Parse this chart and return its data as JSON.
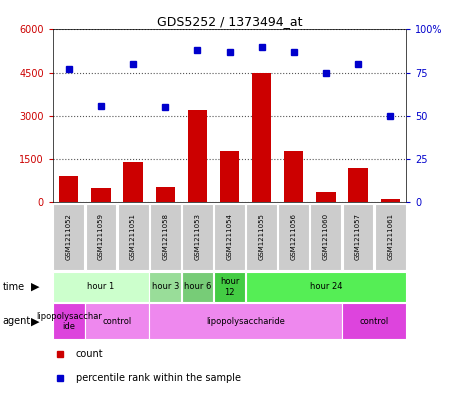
{
  "title": "GDS5252 / 1373494_at",
  "samples": [
    "GSM1211052",
    "GSM1211059",
    "GSM1211051",
    "GSM1211058",
    "GSM1211053",
    "GSM1211054",
    "GSM1211055",
    "GSM1211056",
    "GSM1211060",
    "GSM1211057",
    "GSM1211061"
  ],
  "counts": [
    900,
    500,
    1400,
    550,
    3200,
    1800,
    4500,
    1800,
    350,
    1200,
    120
  ],
  "percentiles": [
    77,
    56,
    80,
    55,
    88,
    87,
    90,
    87,
    75,
    80,
    50
  ],
  "ylim_left": [
    0,
    6000
  ],
  "ylim_right": [
    0,
    100
  ],
  "yticks_left": [
    0,
    1500,
    3000,
    4500,
    6000
  ],
  "yticks_right": [
    0,
    25,
    50,
    75,
    100
  ],
  "bar_color": "#cc0000",
  "dot_color": "#0000cc",
  "plot_bg": "#ffffff",
  "time_row": {
    "label": "time",
    "groups": [
      {
        "text": "hour 1",
        "start": 0,
        "end": 3,
        "color": "#ccffcc"
      },
      {
        "text": "hour 3",
        "start": 3,
        "end": 4,
        "color": "#99dd99"
      },
      {
        "text": "hour 6",
        "start": 4,
        "end": 5,
        "color": "#77cc77"
      },
      {
        "text": "hour\n12",
        "start": 5,
        "end": 6,
        "color": "#44cc44"
      },
      {
        "text": "hour 24",
        "start": 6,
        "end": 11,
        "color": "#55ee55"
      }
    ]
  },
  "agent_row": {
    "label": "agent",
    "groups": [
      {
        "text": "lipopolysacchar\nide",
        "start": 0,
        "end": 1,
        "color": "#dd44dd"
      },
      {
        "text": "control",
        "start": 1,
        "end": 3,
        "color": "#ee88ee"
      },
      {
        "text": "lipopolysaccharide",
        "start": 3,
        "end": 9,
        "color": "#ee88ee"
      },
      {
        "text": "control",
        "start": 9,
        "end": 11,
        "color": "#dd44dd"
      }
    ]
  },
  "agent_group_colors": [
    "#dd44dd",
    "#ee88ee",
    "#ee88ee",
    "#dd44dd"
  ],
  "grid_color": "#555555",
  "tick_color_left": "#cc0000",
  "tick_color_right": "#0000cc",
  "sample_col_color": "#cccccc",
  "legend_count_color": "#cc0000",
  "legend_pct_color": "#0000cc"
}
